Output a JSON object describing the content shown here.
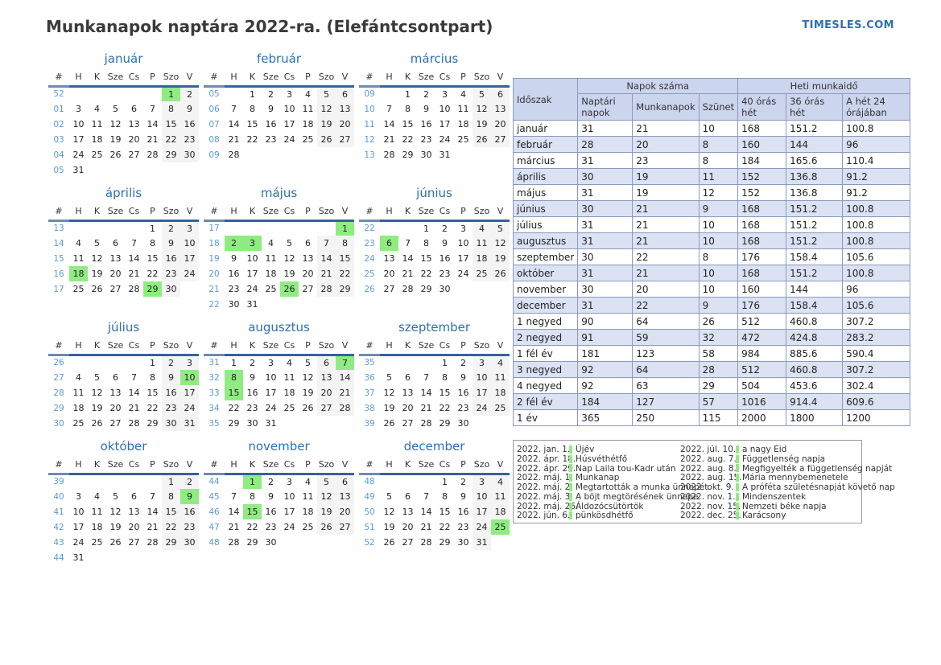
{
  "page": {
    "title": "Munkanapok naptára 2022-ra. (Elefántcsontpart)",
    "site": "TIMESLES.COM"
  },
  "calendar": {
    "day_headers": [
      "#",
      "H",
      "K",
      "Sze",
      "Cs",
      "P",
      "Szo",
      "V"
    ],
    "holiday_color": "#90ec82",
    "weekend_color": "#f4f4f4",
    "months": [
      {
        "name": "január",
        "green": [
          "1"
        ],
        "weeks": [
          {
            "n": "52",
            "d": [
              "",
              "",
              "",
              "",
              "",
              "1",
              "2"
            ]
          },
          {
            "n": "01",
            "d": [
              "3",
              "4",
              "5",
              "6",
              "7",
              "8",
              "9"
            ]
          },
          {
            "n": "02",
            "d": [
              "10",
              "11",
              "12",
              "13",
              "14",
              "15",
              "16"
            ]
          },
          {
            "n": "03",
            "d": [
              "17",
              "18",
              "19",
              "20",
              "21",
              "22",
              "23"
            ]
          },
          {
            "n": "04",
            "d": [
              "24",
              "25",
              "26",
              "27",
              "28",
              "29",
              "30"
            ]
          },
          {
            "n": "05",
            "d": [
              "31",
              "",
              "",
              "",
              "",
              "",
              ""
            ]
          }
        ]
      },
      {
        "name": "február",
        "green": [],
        "weeks": [
          {
            "n": "05",
            "d": [
              "",
              "1",
              "2",
              "3",
              "4",
              "5",
              "6"
            ]
          },
          {
            "n": "06",
            "d": [
              "7",
              "8",
              "9",
              "10",
              "11",
              "12",
              "13"
            ]
          },
          {
            "n": "07",
            "d": [
              "14",
              "15",
              "16",
              "17",
              "18",
              "19",
              "20"
            ]
          },
          {
            "n": "08",
            "d": [
              "21",
              "22",
              "23",
              "24",
              "25",
              "26",
              "27"
            ]
          },
          {
            "n": "09",
            "d": [
              "28",
              "",
              "",
              "",
              "",
              "",
              ""
            ]
          }
        ]
      },
      {
        "name": "március",
        "green": [],
        "weeks": [
          {
            "n": "09",
            "d": [
              "",
              "1",
              "2",
              "3",
              "4",
              "5",
              "6"
            ]
          },
          {
            "n": "10",
            "d": [
              "7",
              "8",
              "9",
              "10",
              "11",
              "12",
              "13"
            ]
          },
          {
            "n": "11",
            "d": [
              "14",
              "15",
              "16",
              "17",
              "18",
              "19",
              "20"
            ]
          },
          {
            "n": "12",
            "d": [
              "21",
              "22",
              "23",
              "24",
              "25",
              "26",
              "27"
            ]
          },
          {
            "n": "13",
            "d": [
              "28",
              "29",
              "30",
              "31",
              "",
              "",
              ""
            ]
          }
        ]
      },
      {
        "name": "április",
        "green": [
          "18",
          "29"
        ],
        "weeks": [
          {
            "n": "13",
            "d": [
              "",
              "",
              "",
              "",
              "1",
              "2",
              "3"
            ]
          },
          {
            "n": "14",
            "d": [
              "4",
              "5",
              "6",
              "7",
              "8",
              "9",
              "10"
            ]
          },
          {
            "n": "15",
            "d": [
              "11",
              "12",
              "13",
              "14",
              "15",
              "16",
              "17"
            ]
          },
          {
            "n": "16",
            "d": [
              "18",
              "19",
              "20",
              "21",
              "22",
              "23",
              "24"
            ]
          },
          {
            "n": "17",
            "d": [
              "25",
              "26",
              "27",
              "28",
              "29",
              "30",
              ""
            ]
          }
        ]
      },
      {
        "name": "május",
        "green": [
          "1",
          "2",
          "3",
          "26"
        ],
        "weeks": [
          {
            "n": "17",
            "d": [
              "",
              "",
              "",
              "",
              "",
              "",
              "1"
            ]
          },
          {
            "n": "18",
            "d": [
              "2",
              "3",
              "4",
              "5",
              "6",
              "7",
              "8"
            ]
          },
          {
            "n": "19",
            "d": [
              "9",
              "10",
              "11",
              "12",
              "13",
              "14",
              "15"
            ]
          },
          {
            "n": "20",
            "d": [
              "16",
              "17",
              "18",
              "19",
              "20",
              "21",
              "22"
            ]
          },
          {
            "n": "21",
            "d": [
              "23",
              "24",
              "25",
              "26",
              "27",
              "28",
              "29"
            ]
          },
          {
            "n": "22",
            "d": [
              "30",
              "31",
              "",
              "",
              "",
              "",
              ""
            ]
          }
        ]
      },
      {
        "name": "június",
        "green": [
          "6"
        ],
        "weeks": [
          {
            "n": "22",
            "d": [
              "",
              "",
              "1",
              "2",
              "3",
              "4",
              "5"
            ]
          },
          {
            "n": "23",
            "d": [
              "6",
              "7",
              "8",
              "9",
              "10",
              "11",
              "12"
            ]
          },
          {
            "n": "24",
            "d": [
              "13",
              "14",
              "15",
              "16",
              "17",
              "18",
              "19"
            ]
          },
          {
            "n": "25",
            "d": [
              "20",
              "21",
              "22",
              "23",
              "24",
              "25",
              "26"
            ]
          },
          {
            "n": "26",
            "d": [
              "27",
              "28",
              "29",
              "30",
              "",
              "",
              ""
            ]
          }
        ]
      },
      {
        "name": "július",
        "green": [
          "10"
        ],
        "weeks": [
          {
            "n": "26",
            "d": [
              "",
              "",
              "",
              "",
              "1",
              "2",
              "3"
            ]
          },
          {
            "n": "27",
            "d": [
              "4",
              "5",
              "6",
              "7",
              "8",
              "9",
              "10"
            ]
          },
          {
            "n": "28",
            "d": [
              "11",
              "12",
              "13",
              "14",
              "15",
              "16",
              "17"
            ]
          },
          {
            "n": "29",
            "d": [
              "18",
              "19",
              "20",
              "21",
              "22",
              "23",
              "24"
            ]
          },
          {
            "n": "30",
            "d": [
              "25",
              "26",
              "27",
              "28",
              "29",
              "30",
              "31"
            ]
          }
        ]
      },
      {
        "name": "augusztus",
        "green": [
          "7",
          "8",
          "15"
        ],
        "weeks": [
          {
            "n": "31",
            "d": [
              "1",
              "2",
              "3",
              "4",
              "5",
              "6",
              "7"
            ]
          },
          {
            "n": "32",
            "d": [
              "8",
              "9",
              "10",
              "11",
              "12",
              "13",
              "14"
            ]
          },
          {
            "n": "33",
            "d": [
              "15",
              "16",
              "17",
              "18",
              "19",
              "20",
              "21"
            ]
          },
          {
            "n": "34",
            "d": [
              "22",
              "23",
              "24",
              "25",
              "26",
              "27",
              "28"
            ]
          },
          {
            "n": "35",
            "d": [
              "29",
              "30",
              "31",
              "",
              "",
              "",
              ""
            ]
          }
        ]
      },
      {
        "name": "szeptember",
        "green": [],
        "weeks": [
          {
            "n": "35",
            "d": [
              "",
              "",
              "",
              "1",
              "2",
              "3",
              "4"
            ]
          },
          {
            "n": "36",
            "d": [
              "5",
              "6",
              "7",
              "8",
              "9",
              "10",
              "11"
            ]
          },
          {
            "n": "37",
            "d": [
              "12",
              "13",
              "14",
              "15",
              "16",
              "17",
              "18"
            ]
          },
          {
            "n": "38",
            "d": [
              "19",
              "20",
              "21",
              "22",
              "23",
              "24",
              "25"
            ]
          },
          {
            "n": "39",
            "d": [
              "26",
              "27",
              "28",
              "29",
              "30",
              "",
              ""
            ]
          }
        ]
      },
      {
        "name": "október",
        "green": [
          "9"
        ],
        "weeks": [
          {
            "n": "39",
            "d": [
              "",
              "",
              "",
              "",
              "",
              "1",
              "2"
            ]
          },
          {
            "n": "40",
            "d": [
              "3",
              "4",
              "5",
              "6",
              "7",
              "8",
              "9"
            ]
          },
          {
            "n": "41",
            "d": [
              "10",
              "11",
              "12",
              "13",
              "14",
              "15",
              "16"
            ]
          },
          {
            "n": "42",
            "d": [
              "17",
              "18",
              "19",
              "20",
              "21",
              "22",
              "23"
            ]
          },
          {
            "n": "43",
            "d": [
              "24",
              "25",
              "26",
              "27",
              "28",
              "29",
              "30"
            ]
          },
          {
            "n": "44",
            "d": [
              "31",
              "",
              "",
              "",
              "",
              "",
              ""
            ]
          }
        ]
      },
      {
        "name": "november",
        "green": [
          "1",
          "15"
        ],
        "weeks": [
          {
            "n": "44",
            "d": [
              "",
              "1",
              "2",
              "3",
              "4",
              "5",
              "6"
            ]
          },
          {
            "n": "45",
            "d": [
              "7",
              "8",
              "9",
              "10",
              "11",
              "12",
              "13"
            ]
          },
          {
            "n": "46",
            "d": [
              "14",
              "15",
              "16",
              "17",
              "18",
              "19",
              "20"
            ]
          },
          {
            "n": "47",
            "d": [
              "21",
              "22",
              "23",
              "24",
              "25",
              "26",
              "27"
            ]
          },
          {
            "n": "48",
            "d": [
              "28",
              "29",
              "30",
              "",
              "",
              "",
              ""
            ]
          }
        ]
      },
      {
        "name": "december",
        "green": [
          "25"
        ],
        "weeks": [
          {
            "n": "48",
            "d": [
              "",
              "",
              "",
              "1",
              "2",
              "3",
              "4"
            ]
          },
          {
            "n": "49",
            "d": [
              "5",
              "6",
              "7",
              "8",
              "9",
              "10",
              "11"
            ]
          },
          {
            "n": "50",
            "d": [
              "12",
              "13",
              "14",
              "15",
              "16",
              "17",
              "18"
            ]
          },
          {
            "n": "51",
            "d": [
              "19",
              "20",
              "21",
              "22",
              "23",
              "24",
              "25"
            ]
          },
          {
            "n": "52",
            "d": [
              "26",
              "27",
              "28",
              "29",
              "30",
              "31",
              ""
            ]
          }
        ]
      }
    ]
  },
  "table": {
    "headers": {
      "period": "Időszak",
      "days_group": "Napok száma",
      "hours_group": "Heti munkaidő",
      "cols": [
        "Naptári napok",
        "Munkanapok",
        "Szünet",
        "40 órás hét",
        "36 órás hét",
        "A hét 24 órájában"
      ]
    },
    "rows": [
      [
        "január",
        "31",
        "21",
        "10",
        "168",
        "151.2",
        "100.8"
      ],
      [
        "február",
        "28",
        "20",
        "8",
        "160",
        "144",
        "96"
      ],
      [
        "március",
        "31",
        "23",
        "8",
        "184",
        "165.6",
        "110.4"
      ],
      [
        "április",
        "30",
        "19",
        "11",
        "152",
        "136.8",
        "91.2"
      ],
      [
        "május",
        "31",
        "19",
        "12",
        "152",
        "136.8",
        "91.2"
      ],
      [
        "június",
        "30",
        "21",
        "9",
        "168",
        "151.2",
        "100.8"
      ],
      [
        "július",
        "31",
        "21",
        "10",
        "168",
        "151.2",
        "100.8"
      ],
      [
        "augusztus",
        "31",
        "21",
        "10",
        "168",
        "151.2",
        "100.8"
      ],
      [
        "szeptember",
        "30",
        "22",
        "8",
        "176",
        "158.4",
        "105.6"
      ],
      [
        "október",
        "31",
        "21",
        "10",
        "168",
        "151.2",
        "100.8"
      ],
      [
        "november",
        "30",
        "20",
        "10",
        "160",
        "144",
        "96"
      ],
      [
        "december",
        "31",
        "22",
        "9",
        "176",
        "158.4",
        "105.6"
      ],
      [
        "1 negyed",
        "90",
        "64",
        "26",
        "512",
        "460.8",
        "307.2"
      ],
      [
        "2 negyed",
        "91",
        "59",
        "32",
        "472",
        "424.8",
        "283.2"
      ],
      [
        "1 fél év",
        "181",
        "123",
        "58",
        "984",
        "885.6",
        "590.4"
      ],
      [
        "3 negyed",
        "92",
        "64",
        "28",
        "512",
        "460.8",
        "307.2"
      ],
      [
        "4 negyed",
        "92",
        "63",
        "29",
        "504",
        "453.6",
        "302.4"
      ],
      [
        "2 fél év",
        "184",
        "127",
        "57",
        "1016",
        "914.4",
        "609.6"
      ],
      [
        "1 év",
        "365",
        "250",
        "115",
        "2000",
        "1800",
        "1200"
      ]
    ]
  },
  "legend": {
    "col1": [
      [
        "2022. jan. 1.",
        "Újév"
      ],
      [
        "2022. ápr. 18.",
        "Húsvéthétfő"
      ],
      [
        "2022. ápr. 29.",
        "Nap Laila tou-Kadr után"
      ],
      [
        "2022. máj. 1.",
        "Munkanap"
      ],
      [
        "2022. máj. 2.",
        "Megtartották a munka ünnepét"
      ],
      [
        "2022. máj. 3.",
        "A böjt megtörésének ünnepe"
      ],
      [
        "2022. máj. 26.",
        "Áldozócsütörtök"
      ],
      [
        "2022. jún. 6.",
        "pünkösdhétfő"
      ]
    ],
    "col2": [
      [
        "2022. júl. 10.",
        "a nagy Eid"
      ],
      [
        "2022. aug. 7.",
        "Függetlenség napja"
      ],
      [
        "2022. aug. 8.",
        "Megfigyelték a függetlenség napját"
      ],
      [
        "2022. aug. 15.",
        "Mária mennybemenetele"
      ],
      [
        "2022. okt. 9.",
        "A próféta születésnapját követő nap"
      ],
      [
        "2022. nov. 1.",
        "Mindenszentek"
      ],
      [
        "2022. nov. 15.",
        "Nemzeti béke napja"
      ],
      [
        "2022. dec. 25.",
        "Karácsony"
      ]
    ]
  }
}
